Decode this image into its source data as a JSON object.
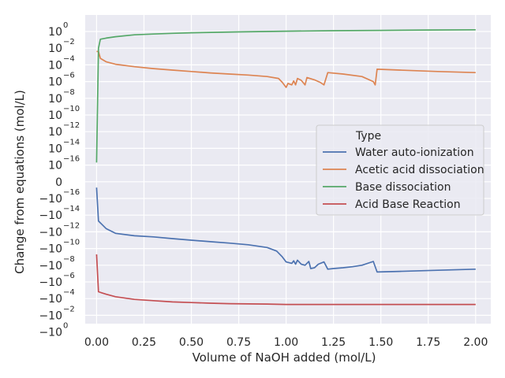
{
  "chart_data": {
    "type": "line",
    "xlabel": "Volume of NaOH added (mol/L)",
    "ylabel": "Change from equations (mol/L)",
    "xlim": [
      -0.06,
      2.08
    ],
    "x_ticks": [
      "0.00",
      "0.25",
      "0.50",
      "0.75",
      "1.00",
      "1.25",
      "1.50",
      "1.75",
      "2.00"
    ],
    "y_scale": "symlog",
    "y_ticks": [
      {
        "base": "10",
        "exp": "0"
      },
      {
        "base": "10",
        "exp": "−2"
      },
      {
        "base": "10",
        "exp": "−4"
      },
      {
        "base": "10",
        "exp": "−6"
      },
      {
        "base": "10",
        "exp": "−8"
      },
      {
        "base": "10",
        "exp": "−10"
      },
      {
        "base": "10",
        "exp": "−12"
      },
      {
        "base": "10",
        "exp": "−14"
      },
      {
        "base": "10",
        "exp": "−16"
      },
      {
        "base": "0",
        "exp": ""
      },
      {
        "base": "−10",
        "exp": "−16"
      },
      {
        "base": "−10",
        "exp": "−14"
      },
      {
        "base": "−10",
        "exp": "−12"
      },
      {
        "base": "−10",
        "exp": "−10"
      },
      {
        "base": "−10",
        "exp": "−8"
      },
      {
        "base": "−10",
        "exp": "−6"
      },
      {
        "base": "−10",
        "exp": "−4"
      },
      {
        "base": "−10",
        "exp": "−2"
      },
      {
        "base": "−10",
        "exp": "0"
      }
    ],
    "grid": true,
    "legend": {
      "title": "Type",
      "placement": "center-right"
    },
    "series": [
      {
        "name": "Water auto-ionization",
        "color": "#4c72b0",
        "points": [
          [
            0.0,
            -1e-15
          ],
          [
            0.01,
            -1e-11
          ],
          [
            0.05,
            -8e-11
          ],
          [
            0.1,
            -3e-10
          ],
          [
            0.2,
            -6e-10
          ],
          [
            0.3,
            -8e-10
          ],
          [
            0.4,
            -1.3e-09
          ],
          [
            0.5,
            -2e-09
          ],
          [
            0.6,
            -3e-09
          ],
          [
            0.7,
            -4.5e-09
          ],
          [
            0.8,
            -7e-09
          ],
          [
            0.9,
            -1.5e-08
          ],
          [
            0.95,
            -4e-08
          ],
          [
            0.98,
            -2e-07
          ],
          [
            1.0,
            -8e-07
          ],
          [
            1.03,
            -1.2e-06
          ],
          [
            1.04,
            -6e-07
          ],
          [
            1.05,
            -1.5e-06
          ],
          [
            1.06,
            -5e-07
          ],
          [
            1.08,
            -1.5e-06
          ],
          [
            1.1,
            -2e-06
          ],
          [
            1.12,
            -7e-07
          ],
          [
            1.13,
            -5e-06
          ],
          [
            1.15,
            -4e-06
          ],
          [
            1.17,
            -1.5e-06
          ],
          [
            1.2,
            -8e-07
          ],
          [
            1.22,
            -6e-06
          ],
          [
            1.25,
            -5e-06
          ],
          [
            1.3,
            -4e-06
          ],
          [
            1.35,
            -3e-06
          ],
          [
            1.4,
            -2e-06
          ],
          [
            1.46,
            -7e-07
          ],
          [
            1.48,
            -1.3e-05
          ],
          [
            1.6,
            -1.1e-05
          ],
          [
            1.8,
            -8e-06
          ],
          [
            2.0,
            -6e-06
          ]
        ]
      },
      {
        "name": "Acetic acid dissociation",
        "color": "#dd8452",
        "points": [
          [
            0.0,
            0.002
          ],
          [
            0.01,
            0.002
          ],
          [
            0.02,
            0.0003
          ],
          [
            0.05,
            0.00012
          ],
          [
            0.1,
            6e-05
          ],
          [
            0.2,
            3e-05
          ],
          [
            0.3,
            1.8e-05
          ],
          [
            0.4,
            1.2e-05
          ],
          [
            0.5,
            8e-06
          ],
          [
            0.6,
            5.5e-06
          ],
          [
            0.7,
            4e-06
          ],
          [
            0.8,
            3e-06
          ],
          [
            0.9,
            2e-06
          ],
          [
            0.96,
            1.2e-06
          ],
          [
            0.98,
            4e-07
          ],
          [
            1.0,
            1e-07
          ],
          [
            1.01,
            3e-07
          ],
          [
            1.03,
            2e-07
          ],
          [
            1.04,
            6e-07
          ],
          [
            1.05,
            2e-07
          ],
          [
            1.06,
            1.2e-06
          ],
          [
            1.08,
            7e-07
          ],
          [
            1.1,
            2e-07
          ],
          [
            1.11,
            1.5e-06
          ],
          [
            1.15,
            8e-07
          ],
          [
            1.18,
            4e-07
          ],
          [
            1.2,
            2e-07
          ],
          [
            1.22,
            6e-06
          ],
          [
            1.3,
            4e-06
          ],
          [
            1.4,
            2e-06
          ],
          [
            1.46,
            5e-07
          ],
          [
            1.47,
            2e-07
          ],
          [
            1.48,
            1.5e-05
          ],
          [
            1.6,
            1.2e-05
          ],
          [
            1.8,
            8e-06
          ],
          [
            2.0,
            6e-06
          ]
        ]
      },
      {
        "name": "Base dissociation",
        "color": "#55a868",
        "points": [
          [
            0.0,
            1e-16
          ],
          [
            0.01,
            0.005
          ],
          [
            0.02,
            0.06
          ],
          [
            0.05,
            0.08
          ],
          [
            0.1,
            0.12
          ],
          [
            0.2,
            0.2
          ],
          [
            0.3,
            0.25
          ],
          [
            0.4,
            0.3
          ],
          [
            0.5,
            0.35
          ],
          [
            0.75,
            0.45
          ],
          [
            1.0,
            0.55
          ],
          [
            1.25,
            0.62
          ],
          [
            1.5,
            0.68
          ],
          [
            1.75,
            0.75
          ],
          [
            2.0,
            0.8
          ]
        ]
      },
      {
        "name": "Acid Base Reaction",
        "color": "#c44e52",
        "points": [
          [
            0.0,
            -1e-07
          ],
          [
            0.01,
            -0.003
          ],
          [
            0.05,
            -0.006
          ],
          [
            0.1,
            -0.012
          ],
          [
            0.2,
            -0.025
          ],
          [
            0.3,
            -0.035
          ],
          [
            0.4,
            -0.05
          ],
          [
            0.5,
            -0.06
          ],
          [
            0.6,
            -0.07
          ],
          [
            0.7,
            -0.08
          ],
          [
            0.8,
            -0.085
          ],
          [
            0.9,
            -0.09
          ],
          [
            1.0,
            -0.1
          ],
          [
            1.25,
            -0.1
          ],
          [
            1.5,
            -0.1
          ],
          [
            1.75,
            -0.1
          ],
          [
            2.0,
            -0.1
          ]
        ]
      }
    ]
  }
}
